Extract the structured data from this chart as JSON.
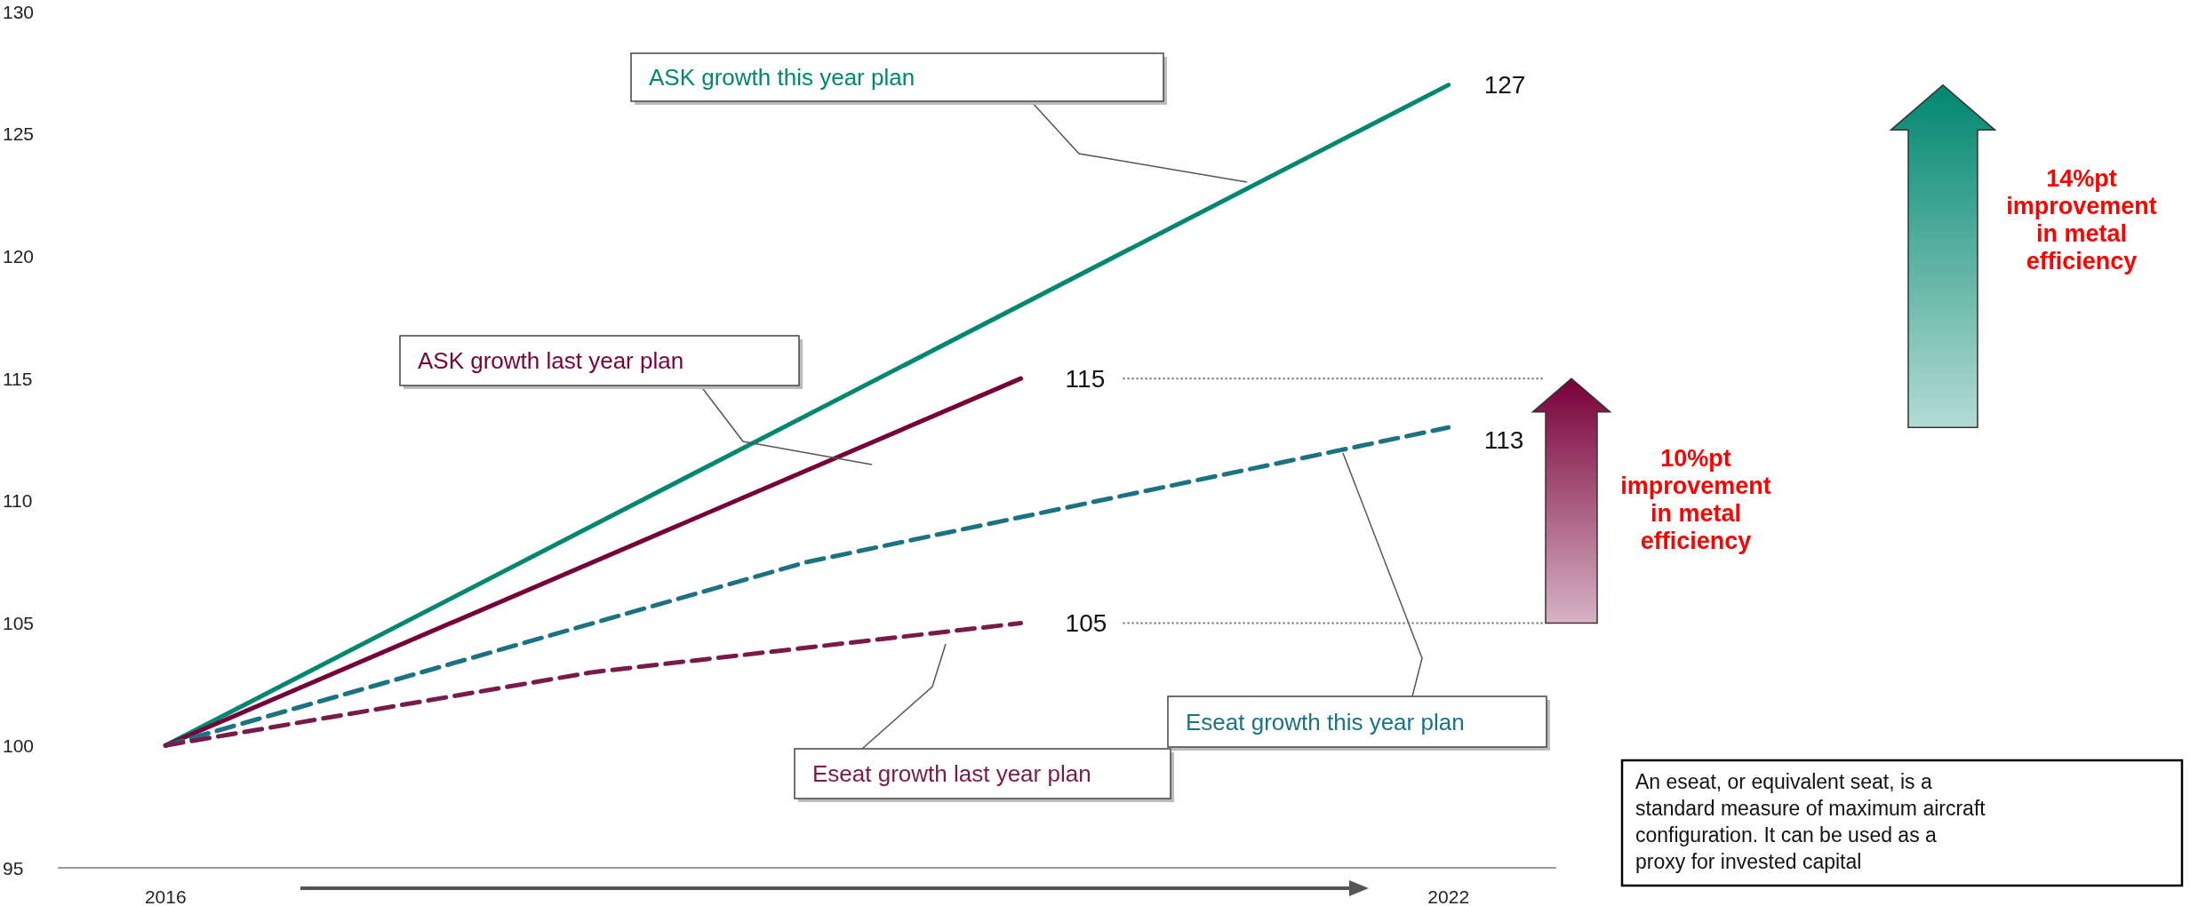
{
  "chart_data": {
    "type": "line",
    "xlim": [
      2015.5,
      2022.5
    ],
    "xticks": [
      2016,
      2022
    ],
    "ylim": [
      95,
      130
    ],
    "yticks": [
      95,
      100,
      105,
      110,
      115,
      120,
      125,
      130
    ],
    "grid": false,
    "legend": false,
    "marker": "none",
    "series": [
      {
        "name": "ASK growth this year plan",
        "color": "#00876f",
        "line_style": "solid",
        "x": [
          2016,
          2022
        ],
        "values": [
          100,
          127
        ],
        "value_labels": [
          null,
          "127"
        ]
      },
      {
        "name": "ASK growth last year plan",
        "color": "#780039",
        "line_style": "solid",
        "x": [
          2016,
          2020
        ],
        "values": [
          100,
          115
        ],
        "value_labels": [
          null,
          "115"
        ]
      },
      {
        "name": "Eseat growth this year plan",
        "color": "#1a7282",
        "line_style": "dashed",
        "x": [
          2016,
          2019,
          2022
        ],
        "values": [
          100,
          107.5,
          113
        ],
        "value_labels": [
          null,
          null,
          "113"
        ]
      },
      {
        "name": "Eseat growth last year plan",
        "color": "#7a1a4a",
        "line_style": "dashed",
        "x": [
          2016,
          2018,
          2020
        ],
        "values": [
          100,
          103,
          105
        ],
        "value_labels": [
          null,
          null,
          "105"
        ]
      }
    ],
    "ref_lines": [
      {
        "axis": "y",
        "value": 115,
        "color": "#666666",
        "line_style": "dotted"
      },
      {
        "axis": "y",
        "value": 105,
        "color": "#666666",
        "line_style": "dotted"
      }
    ],
    "annotations": [
      "10%pt improvement in metal efficiency",
      "14%pt improvement in metal efficiency",
      "An eseat, or equivalent seat, is a standard measure of maximum aircraft configuration. It can be used as a proxy for invested capital"
    ]
  }
}
